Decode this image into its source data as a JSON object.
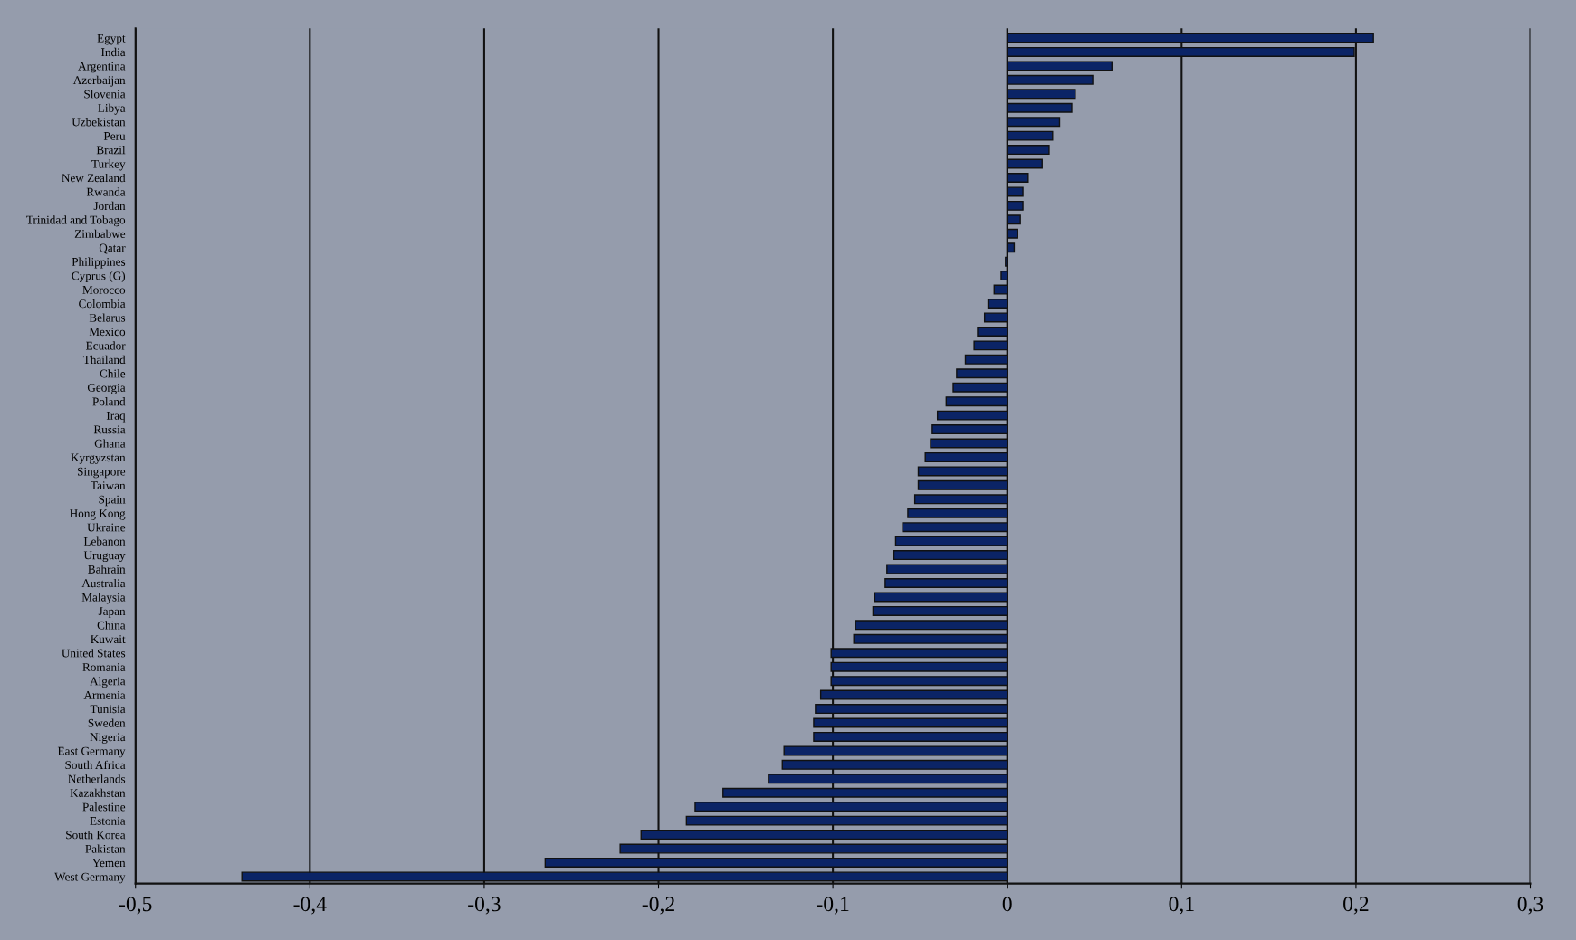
{
  "chart_data": {
    "type": "bar",
    "orientation": "horizontal",
    "color": "#0b2466",
    "grid": "x",
    "categories": [
      "Egypt",
      "India",
      "Argentina",
      "Azerbaijan",
      "Slovenia",
      "Libya",
      "Uzbekistan",
      "Peru",
      "Brazil",
      "Turkey",
      "New Zealand",
      "Rwanda",
      "Jordan",
      "Trinidad and Tobago",
      "Zimbabwe",
      "Qatar",
      "Philippines",
      "Cyprus (G)",
      "Morocco",
      "Colombia",
      "Belarus",
      "Mexico",
      "Ecuador",
      "Thailand",
      "Chile",
      "Georgia",
      "Poland",
      "Iraq",
      "Russia",
      "Ghana",
      "Kyrgyzstan",
      "Singapore",
      "Taiwan",
      "Spain",
      "Hong Kong",
      "Ukraine",
      "Lebanon",
      "Uruguay",
      "Bahrain",
      "Australia",
      "Malaysia",
      "Japan",
      "China",
      "Kuwait",
      "United States",
      "Romania",
      "Algeria",
      "Armenia",
      "Tunisia",
      "Sweden",
      "Nigeria",
      "East Germany",
      "South Africa",
      "Netherlands",
      "Kazakhstan",
      "Palestine",
      "Estonia",
      "South Korea",
      "Pakistan",
      "Yemen",
      "West Germany"
    ],
    "values": [
      0.21,
      0.199,
      0.06,
      0.049,
      0.039,
      0.037,
      0.03,
      0.026,
      0.024,
      0.02,
      0.012,
      0.009,
      0.009,
      0.0075,
      0.006,
      0.004,
      -0.001,
      -0.0035,
      -0.0075,
      -0.011,
      -0.013,
      -0.017,
      -0.019,
      -0.024,
      -0.029,
      -0.031,
      -0.035,
      -0.04,
      -0.043,
      -0.044,
      -0.047,
      -0.051,
      -0.051,
      -0.053,
      -0.057,
      -0.06,
      -0.064,
      -0.065,
      -0.069,
      -0.07,
      -0.076,
      -0.077,
      -0.087,
      -0.088,
      -0.101,
      -0.101,
      -0.101,
      -0.107,
      -0.11,
      -0.111,
      -0.111,
      -0.128,
      -0.129,
      -0.137,
      -0.163,
      -0.179,
      -0.184,
      -0.21,
      -0.222,
      -0.265,
      -0.439
    ],
    "xlim": [
      -0.5,
      0.3
    ],
    "xticks": [
      {
        "value": -0.5,
        "label": "-0,5"
      },
      {
        "value": -0.4,
        "label": "-0,4"
      },
      {
        "value": -0.3,
        "label": "-0,3"
      },
      {
        "value": -0.2,
        "label": "-0,2"
      },
      {
        "value": -0.1,
        "label": "-0,1"
      },
      {
        "value": 0,
        "label": "0"
      },
      {
        "value": 0.1,
        "label": "0,1"
      },
      {
        "value": 0.2,
        "label": "0,2"
      },
      {
        "value": 0.3,
        "label": "0,3"
      }
    ]
  }
}
